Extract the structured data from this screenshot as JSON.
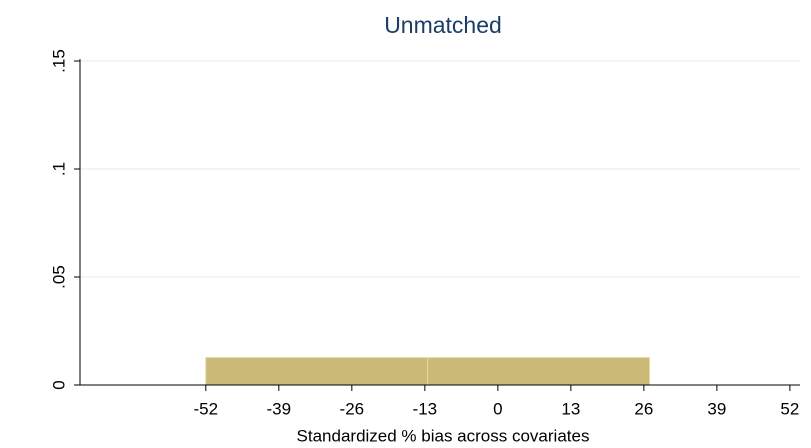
{
  "chart_data": {
    "type": "histogram",
    "title": "Unmatched",
    "xlabel": "Standardized % bias across covariates",
    "bins": [
      -52,
      -12.5,
      27
    ],
    "values": [
      0.0127,
      0.0127
    ],
    "color": "#cbb977",
    "xlim": [
      -74.4,
      53.8
    ],
    "xticks": [
      -52,
      -39,
      -26,
      -13,
      0,
      13,
      26,
      39,
      52
    ],
    "ylim": [
      0,
      0.15
    ],
    "yticks": [
      0,
      {
        "value": 0.05,
        "label": ".05"
      },
      {
        "value": 0.1,
        "label": ".1"
      },
      {
        "value": 0.15,
        "label": ".15"
      }
    ],
    "grid": true
  }
}
